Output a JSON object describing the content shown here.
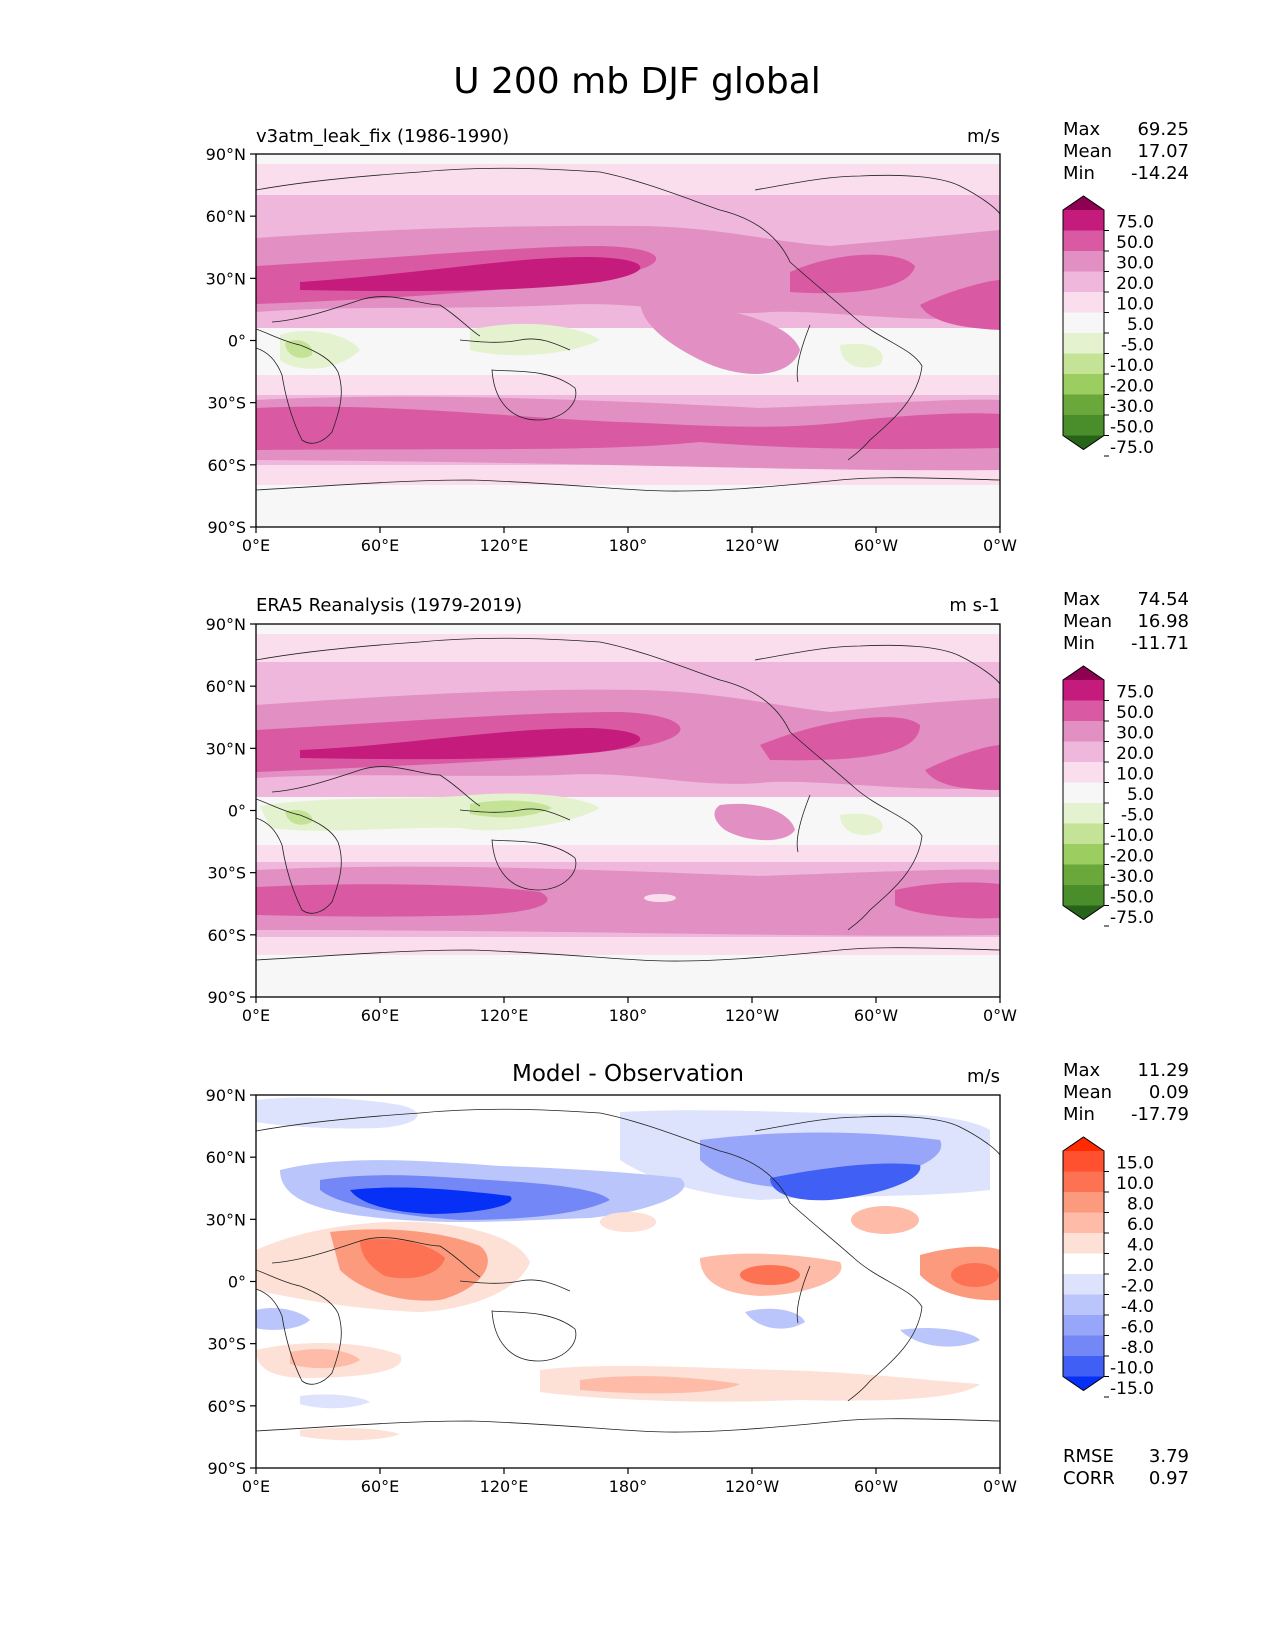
{
  "figure_title": "U 200 mb DJF global",
  "axes": {
    "lat_ticks": [
      "90°N",
      "60°N",
      "30°N",
      "0°",
      "30°S",
      "60°S",
      "90°S"
    ],
    "lon_ticks": [
      "0°E",
      "60°E",
      "120°E",
      "180°",
      "120°W",
      "60°W",
      "0°W"
    ]
  },
  "stat_labels": {
    "max": "Max",
    "mean": "Mean",
    "min": "Min",
    "rmse": "RMSE",
    "corr": "CORR"
  },
  "chart_data": [
    {
      "type": "heatmap",
      "title": "v3atm_leak_fix (1986-1990)",
      "units": "m/s",
      "stats": {
        "max": "69.25",
        "mean": "17.07",
        "min": "-14.24"
      },
      "xlim": [
        0,
        360
      ],
      "ylim": [
        -90,
        90
      ],
      "colorbar": {
        "labels": [
          "75.0",
          "50.0",
          "30.0",
          "20.0",
          "10.0",
          "5.0",
          "-5.0",
          "-10.0",
          "-20.0",
          "-30.0",
          "-50.0",
          "-75.0"
        ],
        "colors": [
          "#8e0152",
          "#c51b7d",
          "#d95aa3",
          "#e28fc3",
          "#eeb7db",
          "#fadeee",
          "#f7f7f7",
          "#e4f2d0",
          "#c5e396",
          "#9ccd61",
          "#6aa83b",
          "#4a8e2b",
          "#276419"
        ]
      }
    },
    {
      "type": "heatmap",
      "title": "ERA5 Reanalysis (1979-2019)",
      "units": "m s-1",
      "stats": {
        "max": "74.54",
        "mean": "16.98",
        "min": "-11.71"
      },
      "xlim": [
        0,
        360
      ],
      "ylim": [
        -90,
        90
      ],
      "colorbar": {
        "labels": [
          "75.0",
          "50.0",
          "30.0",
          "20.0",
          "10.0",
          "5.0",
          "-5.0",
          "-10.0",
          "-20.0",
          "-30.0",
          "-50.0",
          "-75.0"
        ],
        "colors": [
          "#8e0152",
          "#c51b7d",
          "#d95aa3",
          "#e28fc3",
          "#eeb7db",
          "#fadeee",
          "#f7f7f7",
          "#e4f2d0",
          "#c5e396",
          "#9ccd61",
          "#6aa83b",
          "#4a8e2b",
          "#276419"
        ]
      }
    },
    {
      "type": "heatmap",
      "title": "Model - Observation",
      "units": "m/s",
      "stats": {
        "max": "11.29",
        "mean": "0.09",
        "min": "-17.79"
      },
      "metrics": {
        "rmse": "3.79",
        "corr": "0.97"
      },
      "xlim": [
        0,
        360
      ],
      "ylim": [
        -90,
        90
      ],
      "colorbar": {
        "labels": [
          "15.0",
          "10.0",
          "8.0",
          "6.0",
          "4.0",
          "2.0",
          "-2.0",
          "-4.0",
          "-6.0",
          "-8.0",
          "-10.0",
          "-15.0"
        ],
        "colors": [
          "#ff2a00",
          "#ff5030",
          "#fc7253",
          "#fc9a7e",
          "#fdbba8",
          "#fde0d6",
          "#ffffff",
          "#dde3fd",
          "#bac6fb",
          "#97a6f8",
          "#7487f6",
          "#3f5ff5",
          "#0630f5"
        ]
      }
    }
  ]
}
